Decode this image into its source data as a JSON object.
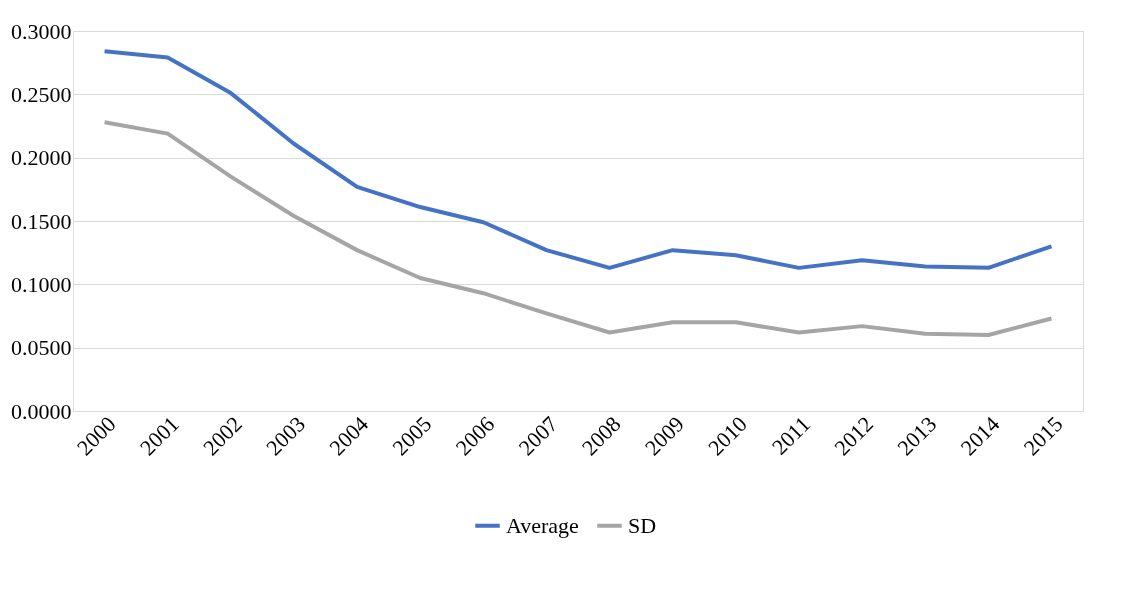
{
  "chart_data": {
    "type": "line",
    "categories": [
      "2000",
      "2001",
      "2002",
      "2003",
      "2004",
      "2005",
      "2006",
      "2007",
      "2008",
      "2009",
      "2010",
      "2011",
      "2012",
      "2013",
      "2014",
      "2015"
    ],
    "series": [
      {
        "name": "Average",
        "color": "#4472c4",
        "values": [
          0.284,
          0.279,
          0.251,
          0.211,
          0.177,
          0.161,
          0.149,
          0.127,
          0.113,
          0.127,
          0.123,
          0.113,
          0.119,
          0.114,
          0.113,
          0.13
        ]
      },
      {
        "name": "SD",
        "color": "#a5a5a5",
        "values": [
          0.228,
          0.219,
          0.185,
          0.154,
          0.127,
          0.105,
          0.093,
          0.077,
          0.062,
          0.07,
          0.07,
          0.062,
          0.067,
          0.061,
          0.06,
          0.073
        ]
      }
    ],
    "ylim": [
      0,
      0.3
    ],
    "yticks": [
      {
        "value": 0,
        "label": "0.0000"
      },
      {
        "value": 0.05,
        "label": "0.0500"
      },
      {
        "value": 0.1,
        "label": "0.1000"
      },
      {
        "value": 0.15,
        "label": "0.1500"
      },
      {
        "value": 0.2,
        "label": "0.2000"
      },
      {
        "value": 0.25,
        "label": "0.2500"
      },
      {
        "value": 0.3,
        "label": "0.3000"
      }
    ],
    "grid": "y",
    "legend": "bottom",
    "marker": "none",
    "line_style": "solid"
  }
}
